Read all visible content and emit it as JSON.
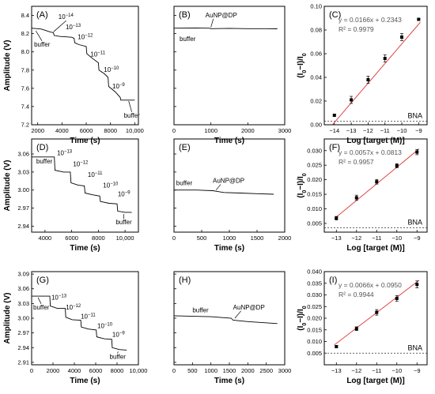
{
  "chart_data": [
    {
      "id": "A",
      "type": "line",
      "panel_label": "(A)",
      "xlabel": "Time (s)",
      "ylabel": "Amplitude (V)",
      "xlim": [
        1500,
        10300
      ],
      "ylim": [
        7.2,
        8.5
      ],
      "xticks": [
        2000,
        4000,
        6000,
        8000,
        10000
      ],
      "xtick_labels": [
        "2000",
        "4000",
        "6000",
        "8000",
        "10,000"
      ],
      "yticks": [
        7.2,
        7.4,
        7.6,
        7.8,
        8.0,
        8.2,
        8.4
      ],
      "ytick_labels": [
        "7.2",
        "7.4",
        "7.6",
        "7.8",
        "8.0",
        "8.2",
        "8.4"
      ],
      "trace": [
        [
          1500,
          8.26
        ],
        [
          2300,
          8.25
        ],
        [
          3000,
          8.22
        ],
        [
          3300,
          8.21
        ],
        [
          3350,
          8.18
        ],
        [
          3800,
          8.17
        ],
        [
          4800,
          8.16
        ],
        [
          5000,
          8.15
        ],
        [
          5050,
          8.1
        ],
        [
          5400,
          8.08
        ],
        [
          6000,
          8.06
        ],
        [
          6050,
          7.98
        ],
        [
          6500,
          7.93
        ],
        [
          7000,
          7.88
        ],
        [
          7050,
          7.8
        ],
        [
          7500,
          7.76
        ],
        [
          7800,
          7.72
        ],
        [
          7850,
          7.62
        ],
        [
          8400,
          7.56
        ],
        [
          8800,
          7.5
        ],
        [
          8850,
          7.47
        ],
        [
          10000,
          7.47
        ]
      ],
      "annotations": [
        {
          "text": "buffer",
          "x": 1700,
          "y": 8.06,
          "ax": 1850,
          "ay": 8.23,
          "sup": ""
        },
        {
          "text": "10",
          "sup": "−14",
          "x": 3700,
          "y": 8.36,
          "ax": 3300,
          "ay": 8.22
        },
        {
          "text": "10",
          "sup": "−13",
          "x": 4300,
          "y": 8.25
        },
        {
          "text": "10",
          "sup": "−12",
          "x": 5300,
          "y": 8.14
        },
        {
          "text": "10",
          "sup": "−11",
          "x": 6350,
          "y": 7.95
        },
        {
          "text": "10",
          "sup": "−10",
          "x": 7450,
          "y": 7.78
        },
        {
          "text": "10",
          "sup": "−9",
          "x": 8150,
          "y": 7.6
        },
        {
          "text": "buffer",
          "x": 9100,
          "y": 7.28,
          "ax": 9500,
          "ay": 7.46,
          "sup": ""
        }
      ]
    },
    {
      "id": "B",
      "type": "line",
      "panel_label": "(B)",
      "xlabel": "Time (s)",
      "ylabel": "",
      "xlim": [
        0,
        3000
      ],
      "ylim": [
        7.2,
        8.5
      ],
      "xticks": [
        0,
        1000,
        2000,
        3000
      ],
      "xtick_labels": [
        "0",
        "1000",
        "2000",
        "3000"
      ],
      "yticks": [
        7.2,
        7.4,
        7.6,
        7.8,
        8.0,
        8.2,
        8.4
      ],
      "ytick_labels": [
        "",
        "",
        "",
        "",
        "",
        "",
        ""
      ],
      "trace": [
        [
          0,
          8.26
        ],
        [
          600,
          8.262
        ],
        [
          950,
          8.26
        ],
        [
          1000,
          8.255
        ],
        [
          1500,
          8.258
        ],
        [
          2000,
          8.255
        ],
        [
          2500,
          8.255
        ],
        [
          2800,
          8.253
        ]
      ],
      "annotations": [
        {
          "text": "AuNP@DP",
          "x": 850,
          "y": 8.38,
          "ax": 1000,
          "ay": 8.27,
          "sup": ""
        },
        {
          "text": "buffer",
          "x": 150,
          "y": 8.12,
          "sup": ""
        }
      ]
    },
    {
      "id": "C",
      "type": "scatter",
      "panel_label": "(C)",
      "xlabel": "Log [target (M)]",
      "ylabel": "(I0−I)/I0",
      "xlim": [
        -14.6,
        -8.5
      ],
      "ylim": [
        0.0,
        0.1
      ],
      "xticks": [
        -14,
        -13,
        -12,
        -11,
        -10,
        -9
      ],
      "xtick_labels": [
        "−14",
        "−13",
        "−12",
        "−11",
        "−10",
        "−9"
      ],
      "yticks": [
        0.0,
        0.02,
        0.04,
        0.06,
        0.08,
        0.1
      ],
      "ytick_labels": [
        "0.00",
        "0.02",
        "0.04",
        "0.06",
        "0.08",
        "0.10"
      ],
      "x": [
        -14,
        -13,
        -12,
        -11,
        -10,
        -9
      ],
      "y": [
        0.008,
        0.021,
        0.038,
        0.056,
        0.074,
        0.089
      ],
      "yerr": [
        0.001,
        0.003,
        0.003,
        0.003,
        0.003,
        0.001
      ],
      "fit": {
        "slope": 0.0166,
        "intercept": 0.2343
      },
      "equation": "y = 0.0166x + 0.2343",
      "r2": "R² = 0.9979",
      "bna_value": 0.003,
      "bna_label": "BNA"
    },
    {
      "id": "D",
      "type": "line",
      "panel_label": "(D)",
      "xlabel": "Time (s)",
      "ylabel": "Amplitude (V)",
      "xlim": [
        3000,
        11000
      ],
      "ylim": [
        2.93,
        3.085
      ],
      "xticks": [
        4000,
        6000,
        8000,
        10000
      ],
      "xtick_labels": [
        "4000",
        "6000",
        "8000",
        "10,000"
      ],
      "yticks": [
        2.94,
        2.97,
        3.0,
        3.03,
        3.06
      ],
      "ytick_labels": [
        "2.94",
        "2.97",
        "3.00",
        "3.03",
        "3.06"
      ],
      "trace": [
        [
          3000,
          3.055
        ],
        [
          4700,
          3.055
        ],
        [
          4750,
          3.033
        ],
        [
          5400,
          3.03
        ],
        [
          5900,
          3.03
        ],
        [
          5950,
          3.012
        ],
        [
          6500,
          3.008
        ],
        [
          6950,
          3.007
        ],
        [
          7000,
          2.995
        ],
        [
          7600,
          2.992
        ],
        [
          8100,
          2.99
        ],
        [
          8150,
          2.981
        ],
        [
          8800,
          2.978
        ],
        [
          9400,
          2.977
        ],
        [
          9450,
          2.965
        ],
        [
          10000,
          2.963
        ],
        [
          10500,
          2.963
        ]
      ],
      "annotations": [
        {
          "text": "buffer",
          "x": 3350,
          "y": 3.044,
          "sup": ""
        },
        {
          "text": "10",
          "sup": "−13",
          "x": 4900,
          "y": 3.058
        },
        {
          "text": "10",
          "sup": "−12",
          "x": 6100,
          "y": 3.04
        },
        {
          "text": "10",
          "sup": "−11",
          "x": 7200,
          "y": 3.022
        },
        {
          "text": "10",
          "sup": "−10",
          "x": 8350,
          "y": 3.004
        },
        {
          "text": "10",
          "sup": "−9",
          "x": 9450,
          "y": 2.99
        },
        {
          "text": "buffer",
          "x": 9300,
          "y": 2.943,
          "ax": 9900,
          "ay": 2.96,
          "sup": ""
        }
      ]
    },
    {
      "id": "E",
      "type": "line",
      "panel_label": "(E)",
      "xlabel": "Time (s)",
      "ylabel": "",
      "xlim": [
        0,
        2000
      ],
      "ylim": [
        2.93,
        3.085
      ],
      "xticks": [
        0,
        500,
        1000,
        1500,
        2000
      ],
      "xtick_labels": [
        "0",
        "500",
        "1000",
        "1500",
        "2000"
      ],
      "yticks": [
        2.94,
        2.97,
        3.0,
        3.03,
        3.06
      ],
      "ytick_labels": [
        "",
        "",
        "",
        "",
        ""
      ],
      "trace": [
        [
          0,
          3.0
        ],
        [
          400,
          3.0
        ],
        [
          700,
          2.999
        ],
        [
          760,
          2.998
        ],
        [
          900,
          2.996
        ],
        [
          1200,
          2.995
        ],
        [
          1500,
          2.994
        ],
        [
          1800,
          2.993
        ]
      ],
      "annotations": [
        {
          "text": "buffer",
          "x": 40,
          "y": 3.008,
          "sup": ""
        },
        {
          "text": "AuNP@DP",
          "x": 700,
          "y": 3.012,
          "ax": 760,
          "ay": 3.0,
          "sup": ""
        }
      ]
    },
    {
      "id": "F",
      "type": "scatter",
      "panel_label": "(F)",
      "xlabel": "Log [target (M)]",
      "ylabel": "(I0−I)/I0",
      "xlim": [
        -13.6,
        -8.5
      ],
      "ylim": [
        0.002,
        0.034
      ],
      "xticks": [
        -13,
        -12,
        -11,
        -10,
        -9
      ],
      "xtick_labels": [
        "−13",
        "−12",
        "−11",
        "−10",
        "−9"
      ],
      "yticks": [
        0.005,
        0.01,
        0.015,
        0.02,
        0.025,
        0.03
      ],
      "ytick_labels": [
        "0.005",
        "0.010",
        "0.015",
        "0.020",
        "0.025",
        "0.030"
      ],
      "x": [
        -13,
        -12,
        -11,
        -10,
        -9
      ],
      "y": [
        0.0068,
        0.0138,
        0.0193,
        0.0248,
        0.0295
      ],
      "yerr": [
        0.0006,
        0.0009,
        0.0008,
        0.0007,
        0.0009
      ],
      "fit": {
        "slope": 0.0057,
        "intercept": 0.0813
      },
      "equation": "y = 0.0057x + 0.0813",
      "r2": "R² = 0.9957",
      "bna_value": 0.0035,
      "bna_label": "BNA"
    },
    {
      "id": "G",
      "type": "line",
      "panel_label": "(G)",
      "xlabel": "Time (s)",
      "ylabel": "Amplitude (V)",
      "xlim": [
        0,
        10000
      ],
      "ylim": [
        2.905,
        3.095
      ],
      "xticks": [
        0,
        2000,
        4000,
        6000,
        8000,
        10000
      ],
      "xtick_labels": [
        "0",
        "2000",
        "4000",
        "6000",
        "8000",
        "10,000"
      ],
      "yticks": [
        2.91,
        2.94,
        2.97,
        3.0,
        3.03,
        3.06,
        3.09
      ],
      "ytick_labels": [
        "2.91",
        "2.94",
        "2.97",
        "3.00",
        "3.03",
        "3.06",
        "3.09"
      ],
      "trace": [
        [
          0,
          3.045
        ],
        [
          1700,
          3.045
        ],
        [
          1750,
          3.025
        ],
        [
          2400,
          3.02
        ],
        [
          3150,
          3.02
        ],
        [
          3200,
          3.002
        ],
        [
          3800,
          2.997
        ],
        [
          4600,
          2.996
        ],
        [
          4650,
          2.982
        ],
        [
          5300,
          2.978
        ],
        [
          6050,
          2.976
        ],
        [
          6100,
          2.962
        ],
        [
          6800,
          2.958
        ],
        [
          7500,
          2.957
        ],
        [
          7550,
          2.94
        ],
        [
          8200,
          2.936
        ],
        [
          8900,
          2.935
        ]
      ],
      "annotations": [
        {
          "text": "buffer",
          "x": 150,
          "y": 3.018,
          "ax": 600,
          "ay": 3.042,
          "sup": ""
        },
        {
          "text": "10",
          "sup": "−13",
          "x": 1850,
          "y": 3.038
        },
        {
          "text": "10",
          "sup": "−12",
          "x": 3200,
          "y": 3.018
        },
        {
          "text": "10",
          "sup": "−11",
          "x": 4600,
          "y": 2.999
        },
        {
          "text": "10",
          "sup": "−10",
          "x": 6150,
          "y": 2.98
        },
        {
          "text": "10",
          "sup": "−9",
          "x": 7550,
          "y": 2.962
        },
        {
          "text": "buffer",
          "x": 7300,
          "y": 2.917,
          "ax": 8100,
          "ay": 2.932,
          "sup": ""
        }
      ]
    },
    {
      "id": "H",
      "type": "line",
      "panel_label": "(H)",
      "xlabel": "Time (s)",
      "ylabel": "",
      "xlim": [
        0,
        3000
      ],
      "ylim": [
        2.905,
        3.095
      ],
      "xticks": [
        0,
        500,
        1000,
        1500,
        2000,
        2500,
        3000
      ],
      "xtick_labels": [
        "0",
        "500",
        "1000",
        "1500",
        "2000",
        "2500",
        "3000"
      ],
      "yticks": [
        2.91,
        2.94,
        2.97,
        3.0,
        3.03,
        3.06,
        3.09
      ],
      "ytick_labels": [
        "",
        "",
        "",
        "",
        "",
        "",
        ""
      ],
      "trace": [
        [
          0,
          3.005
        ],
        [
          1000,
          3.003
        ],
        [
          1550,
          3.0
        ],
        [
          1600,
          2.996
        ],
        [
          2000,
          2.993
        ],
        [
          2400,
          2.991
        ],
        [
          2800,
          2.989
        ]
      ],
      "annotations": [
        {
          "text": "buffer",
          "x": 500,
          "y": 3.012,
          "sup": ""
        },
        {
          "text": "AuNP@DP",
          "x": 1600,
          "y": 3.018,
          "ax": 1650,
          "ay": 3.0,
          "sup": ""
        }
      ]
    },
    {
      "id": "I",
      "type": "scatter",
      "panel_label": "(I)",
      "xlabel": "Log [target (M)]",
      "ylabel": "(I0−I)/I0",
      "xlim": [
        -13.6,
        -8.5
      ],
      "ylim": [
        0.0,
        0.04
      ],
      "xticks": [
        -13,
        -12,
        -11,
        -10,
        -9
      ],
      "xtick_labels": [
        "−13",
        "−12",
        "−11",
        "−10",
        "−9"
      ],
      "yticks": [
        0.0,
        0.005,
        0.01,
        0.015,
        0.02,
        0.025,
        0.03,
        0.035,
        0.04
      ],
      "ytick_labels": [
        "",
        "0.005",
        "0.010",
        "0.015",
        "0.020",
        "0.025",
        "0.030",
        "0.035",
        "0.040"
      ],
      "x": [
        -13,
        -12,
        -11,
        -10,
        -9
      ],
      "y": [
        0.0078,
        0.0155,
        0.0225,
        0.0285,
        0.0345
      ],
      "yerr": [
        0.0005,
        0.0008,
        0.0012,
        0.0012,
        0.0015
      ],
      "fit": {
        "slope": 0.0066,
        "intercept": 0.095
      },
      "equation": "y = 0.0066x + 0.0950",
      "r2": "R² = 0.9944",
      "bna_value": 0.005,
      "bna_label": "BNA"
    }
  ]
}
